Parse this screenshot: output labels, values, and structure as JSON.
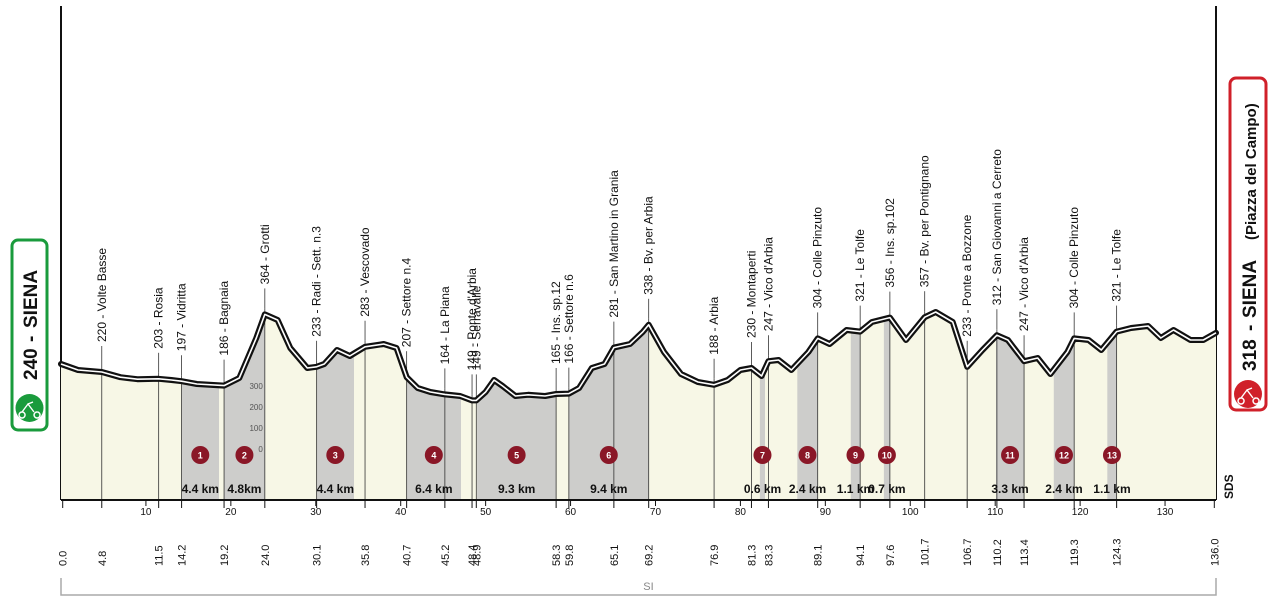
{
  "chart_data": {
    "type": "area",
    "title": "",
    "xlabel": "",
    "ylabel": "",
    "xlim": [
      0,
      136
    ],
    "ylim": [
      -100,
      900
    ],
    "x_ticks": [
      10,
      20,
      30,
      40,
      50,
      60,
      70,
      80,
      90,
      100,
      110,
      120,
      130
    ],
    "altitude_ticks": [
      300,
      200,
      100,
      0
    ],
    "start": {
      "altitude": 240,
      "name": "SIENA"
    },
    "finish": {
      "altitude": 318,
      "name": "SIENA",
      "detail": "(Piazza del Campo)"
    },
    "region": "SI",
    "brand": "SDS",
    "profile": [
      [
        0,
        240
      ],
      [
        2,
        225
      ],
      [
        4.8,
        220
      ],
      [
        7,
        207
      ],
      [
        9,
        202
      ],
      [
        11.5,
        203
      ],
      [
        13,
        200
      ],
      [
        14.2,
        197
      ],
      [
        16,
        190
      ],
      [
        19.2,
        186
      ],
      [
        21,
        205
      ],
      [
        23,
        305
      ],
      [
        24.0,
        364
      ],
      [
        25.5,
        350
      ],
      [
        27,
        280
      ],
      [
        29,
        230
      ],
      [
        30.1,
        233
      ],
      [
        31,
        240
      ],
      [
        32.5,
        275
      ],
      [
        34,
        260
      ],
      [
        35.8,
        283
      ],
      [
        38,
        290
      ],
      [
        39.5,
        280
      ],
      [
        40.7,
        207
      ],
      [
        42,
        180
      ],
      [
        43.5,
        170
      ],
      [
        45.2,
        164
      ],
      [
        47,
        160
      ],
      [
        48.4,
        149
      ],
      [
        48.9,
        149
      ],
      [
        50,
        170
      ],
      [
        51,
        200
      ],
      [
        52,
        185
      ],
      [
        53.5,
        160
      ],
      [
        55,
        163
      ],
      [
        57,
        160
      ],
      [
        58.3,
        165
      ],
      [
        59.8,
        166
      ],
      [
        61,
        180
      ],
      [
        62.5,
        230
      ],
      [
        64,
        240
      ],
      [
        65.1,
        281
      ],
      [
        67,
        290
      ],
      [
        68.5,
        320
      ],
      [
        69.2,
        338
      ],
      [
        71,
        270
      ],
      [
        73,
        215
      ],
      [
        75,
        195
      ],
      [
        76.9,
        188
      ],
      [
        78.5,
        200
      ],
      [
        80,
        225
      ],
      [
        81.3,
        230
      ],
      [
        82.5,
        210
      ],
      [
        83.3,
        247
      ],
      [
        84.5,
        250
      ],
      [
        86,
        225
      ],
      [
        88,
        270
      ],
      [
        89.1,
        304
      ],
      [
        90.5,
        290
      ],
      [
        92.5,
        325
      ],
      [
        94.1,
        321
      ],
      [
        95.5,
        345
      ],
      [
        97.6,
        356
      ],
      [
        99.5,
        300
      ],
      [
        101.7,
        357
      ],
      [
        103,
        370
      ],
      [
        105,
        345
      ],
      [
        106.7,
        233
      ],
      [
        108.5,
        275
      ],
      [
        110.2,
        312
      ],
      [
        111.5,
        300
      ],
      [
        113.4,
        247
      ],
      [
        115,
        255
      ],
      [
        116.5,
        215
      ],
      [
        118.5,
        270
      ],
      [
        119.3,
        304
      ],
      [
        121,
        300
      ],
      [
        122.5,
        275
      ],
      [
        124.3,
        321
      ],
      [
        126,
        330
      ],
      [
        128,
        335
      ],
      [
        129.5,
        305
      ],
      [
        131,
        325
      ],
      [
        133,
        300
      ],
      [
        134.5,
        300
      ],
      [
        136,
        318
      ]
    ],
    "towns": [
      {
        "km": 4.8,
        "label": "220 - Volte Basse",
        "km_label": "4.8"
      },
      {
        "km": 11.5,
        "label": "203 - Rosia",
        "km_label": "11.5"
      },
      {
        "km": 14.2,
        "label": "197 - Vidritta",
        "km_label": "14.2"
      },
      {
        "km": 19.2,
        "label": "186 - Bagnaia",
        "km_label": "19.2"
      },
      {
        "km": 24.0,
        "label": "364 - Grotti",
        "km_label": "24.0"
      },
      {
        "km": 30.1,
        "label": "233 - Radi - Sett. n.3",
        "km_label": "30.1"
      },
      {
        "km": 35.8,
        "label": "283 - Vescovado",
        "km_label": "35.8"
      },
      {
        "km": 40.7,
        "label": "207 - Settore n.4",
        "km_label": "40.7"
      },
      {
        "km": 45.2,
        "label": "164 - La Piana",
        "km_label": "45.2"
      },
      {
        "km": 48.4,
        "label": "149 - Ponte d'Arbia",
        "km_label": "48.4"
      },
      {
        "km": 48.9,
        "label": "149 - Serravalle",
        "km_label": "48.9"
      },
      {
        "km": 58.3,
        "label": "165 - Ins. sp.12",
        "km_label": "58.3"
      },
      {
        "km": 59.8,
        "label": "166 - Settore n.6",
        "km_label": "59.8"
      },
      {
        "km": 65.1,
        "label": "281 - San Martino in Grania",
        "km_label": "65.1"
      },
      {
        "km": 69.2,
        "label": "338 - Bv. per Arbia",
        "km_label": "69.2"
      },
      {
        "km": 76.9,
        "label": "188 - Arbia",
        "km_label": "76.9"
      },
      {
        "km": 81.3,
        "label": "230 - Montaperti",
        "km_label": "81.3"
      },
      {
        "km": 83.3,
        "label": "247 - Vico d'Arbia",
        "km_label": "83.3"
      },
      {
        "km": 89.1,
        "label": "304 - Colle Pinzuto",
        "km_label": "89.1"
      },
      {
        "km": 94.1,
        "label": "321 - Le Tolfe",
        "km_label": "94.1"
      },
      {
        "km": 97.6,
        "label": "356 - Ins. sp.102",
        "km_label": "97.6"
      },
      {
        "km": 101.7,
        "label": "357 - Bv. per Pontignano",
        "km_label": "101.7"
      },
      {
        "km": 106.7,
        "label": "233 - Ponte a Bozzone",
        "km_label": "106.7"
      },
      {
        "km": 110.2,
        "label": "312 - San Giovanni a Cerreto",
        "km_label": "110.2"
      },
      {
        "km": 113.4,
        "label": "247 - Vico d'Arbia",
        "km_label": "113.4"
      },
      {
        "km": 119.3,
        "label": "304 - Colle Pinzuto",
        "km_label": "119.3"
      },
      {
        "km": 124.3,
        "label": "321 - Le Tolfe",
        "km_label": "124.3"
      }
    ],
    "start_km_label": "0.0",
    "finish_km_label": "136.0",
    "gravel_sectors": [
      {
        "n": "1",
        "from": 14.2,
        "to": 18.6,
        "length": "4.4 km"
      },
      {
        "n": "2",
        "from": 19.2,
        "to": 24.0,
        "length": "4.8km"
      },
      {
        "n": "3",
        "from": 30.1,
        "to": 34.5,
        "length": "4.4 km"
      },
      {
        "n": "4",
        "from": 40.7,
        "to": 47.1,
        "length": "6.4 km"
      },
      {
        "n": "5",
        "from": 49.0,
        "to": 58.3,
        "length": "9.3 km"
      },
      {
        "n": "6",
        "from": 59.8,
        "to": 69.2,
        "length": "9.4 km"
      },
      {
        "n": "7",
        "from": 82.3,
        "to": 82.9,
        "length": "0.6 km"
      },
      {
        "n": "8",
        "from": 86.7,
        "to": 89.1,
        "length": "2.4 km"
      },
      {
        "n": "9",
        "from": 93.0,
        "to": 94.1,
        "length": "1.1 km"
      },
      {
        "n": "10",
        "from": 96.9,
        "to": 97.6,
        "length": "0.7 km"
      },
      {
        "n": "11",
        "from": 110.1,
        "to": 113.4,
        "length": "3.3 km"
      },
      {
        "n": "12",
        "from": 116.9,
        "to": 119.3,
        "length": "2.4 km"
      },
      {
        "n": "13",
        "from": 123.2,
        "to": 124.3,
        "length": "1.1 km"
      }
    ],
    "colors": {
      "profile_fill": "#f7f7e6",
      "profile_line": "#111111",
      "gravel": "#c8c8c8",
      "start_green": "#1a9b3c",
      "finish_red": "#d0202a",
      "badge": "#8a1727",
      "axis": "#111111"
    }
  }
}
